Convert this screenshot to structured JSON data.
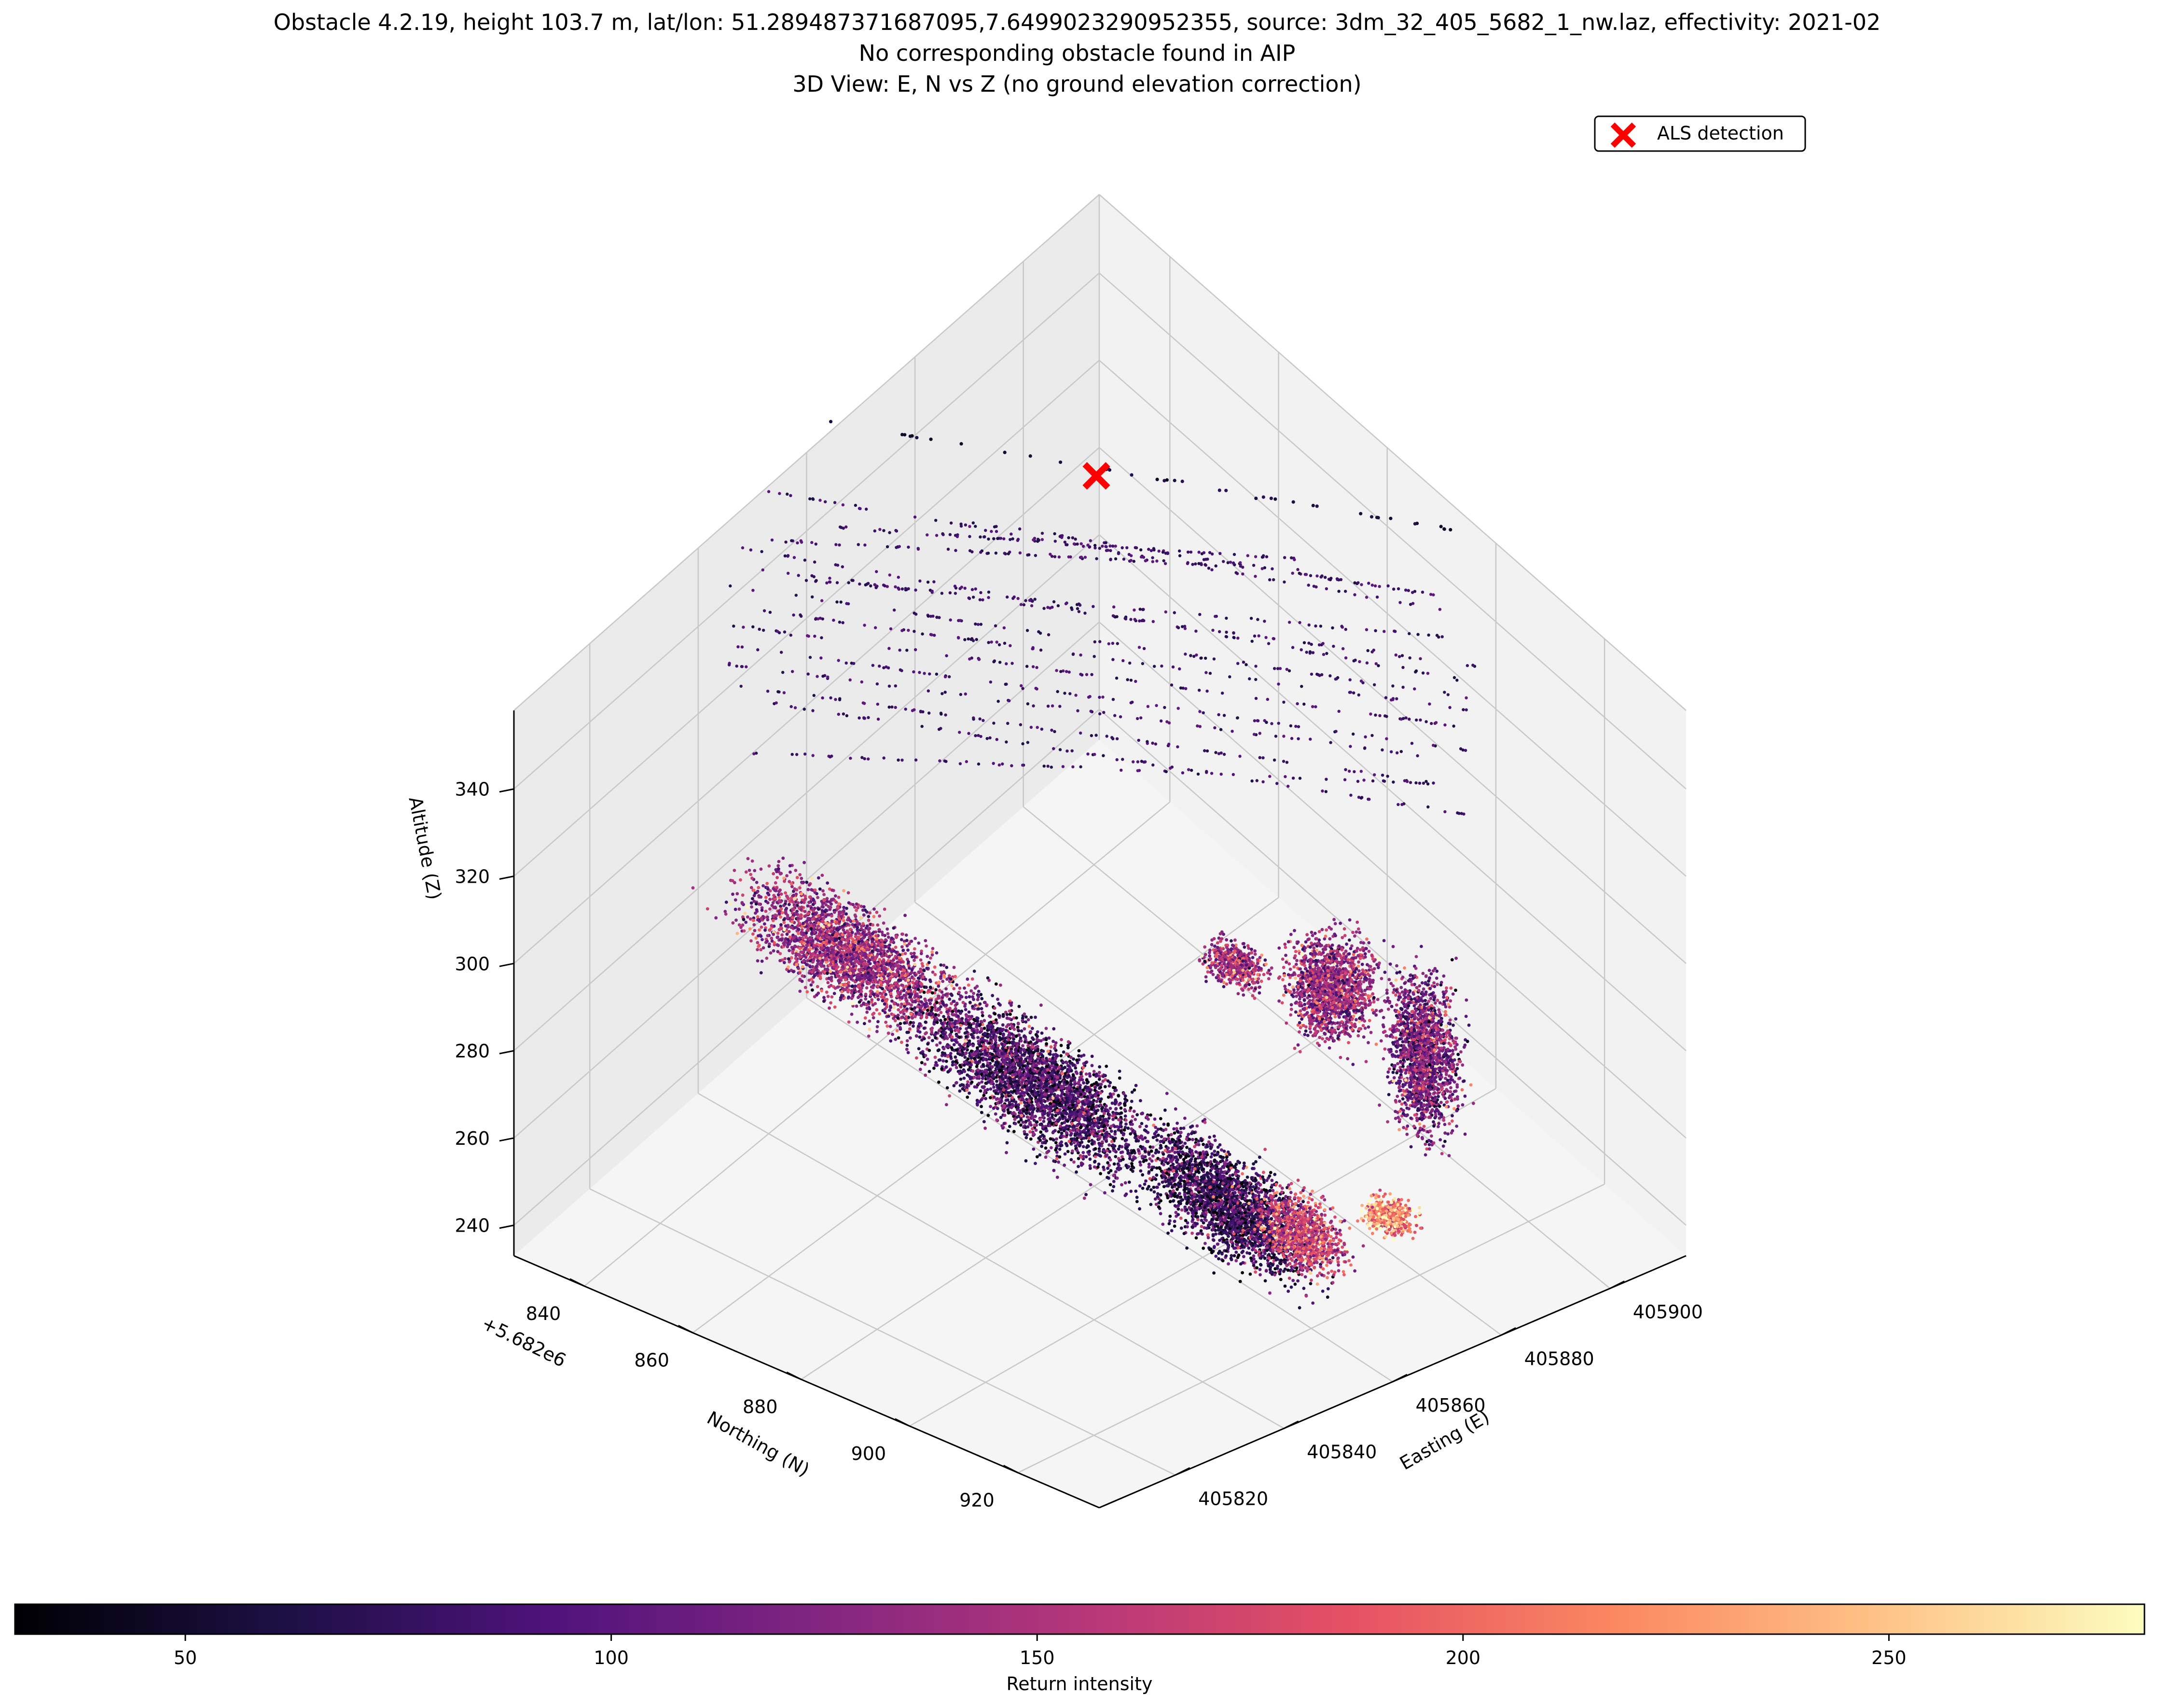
{
  "figure": {
    "title_lines": [
      "Obstacle 4.2.19, height 103.7 m, lat/lon: 51.289487371687095,7.6499023290952355, source: 3dm_32_405_5682_1_nw.laz, effectivity: 2021-02",
      "No corresponding obstacle found in AIP",
      "3D View: E, N vs Z (no ground elevation correction)"
    ]
  },
  "chart_data": {
    "type": "scatter",
    "projection": "3d",
    "grid": true,
    "legend": {
      "label": "ALS detection",
      "marker": "x",
      "color": "#ff0000",
      "placement": "top-right"
    },
    "axes": {
      "z": {
        "label": "Altitude (Z)",
        "ticks": [
          "240",
          "260",
          "280",
          "300",
          "320",
          "340"
        ],
        "range": [
          233,
          358
        ]
      },
      "northing": {
        "label": "Northing (N)",
        "offset_text": "+5.682e6",
        "ticks": [
          "840",
          "860",
          "880",
          "900",
          "920"
        ],
        "range": [
          827,
          935
        ]
      },
      "easting": {
        "label": "Easting (E)",
        "ticks": [
          "405820",
          "405840",
          "405860",
          "405880",
          "405900"
        ],
        "range": [
          405806,
          405914
        ]
      }
    },
    "colorbar": {
      "label": "Return intensity",
      "colormap": "magma",
      "range": [
        30,
        280
      ],
      "ticks": [
        "50",
        "100",
        "150",
        "200",
        "250"
      ],
      "stops": [
        "#000004",
        "#1c1044",
        "#4f127b",
        "#812581",
        "#b5367a",
        "#e55064",
        "#fb8761",
        "#fec287",
        "#fcfdbf"
      ]
    },
    "detection": {
      "label": "ALS detection",
      "altitude": 344
    },
    "point_cloud": {
      "description": "Dense LiDAR returns colored by intensity: tree canopy clusters between ~235 and ~300 m and near-horizontal power-line wires between ~315 and ~348 m",
      "canopy_altitude_range": [
        235,
        300
      ],
      "wire_altitude_range": [
        315,
        348
      ]
    }
  }
}
